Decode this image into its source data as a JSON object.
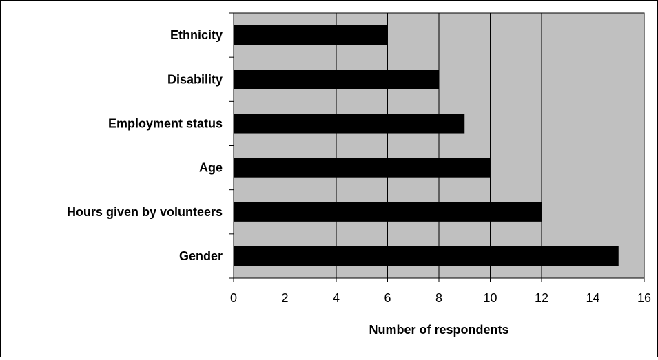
{
  "chart_data": {
    "type": "bar",
    "orientation": "horizontal",
    "categories": [
      "Ethnicity",
      "Disability",
      "Employment status",
      "Age",
      "Hours given by volunteers",
      "Gender"
    ],
    "values": [
      6,
      8,
      9,
      10,
      12,
      15
    ],
    "xlabel": "Number of respondents",
    "ylabel": "",
    "xlim": [
      0,
      16
    ],
    "xticks": [
      "0",
      "2",
      "4",
      "6",
      "8",
      "10",
      "12",
      "14",
      "16"
    ],
    "grid": "vertical",
    "legend": "none",
    "colors": {
      "plot_background": "#c0c0c0",
      "bar": "#000000",
      "gridline": "#000000",
      "frame": "#000000"
    }
  }
}
